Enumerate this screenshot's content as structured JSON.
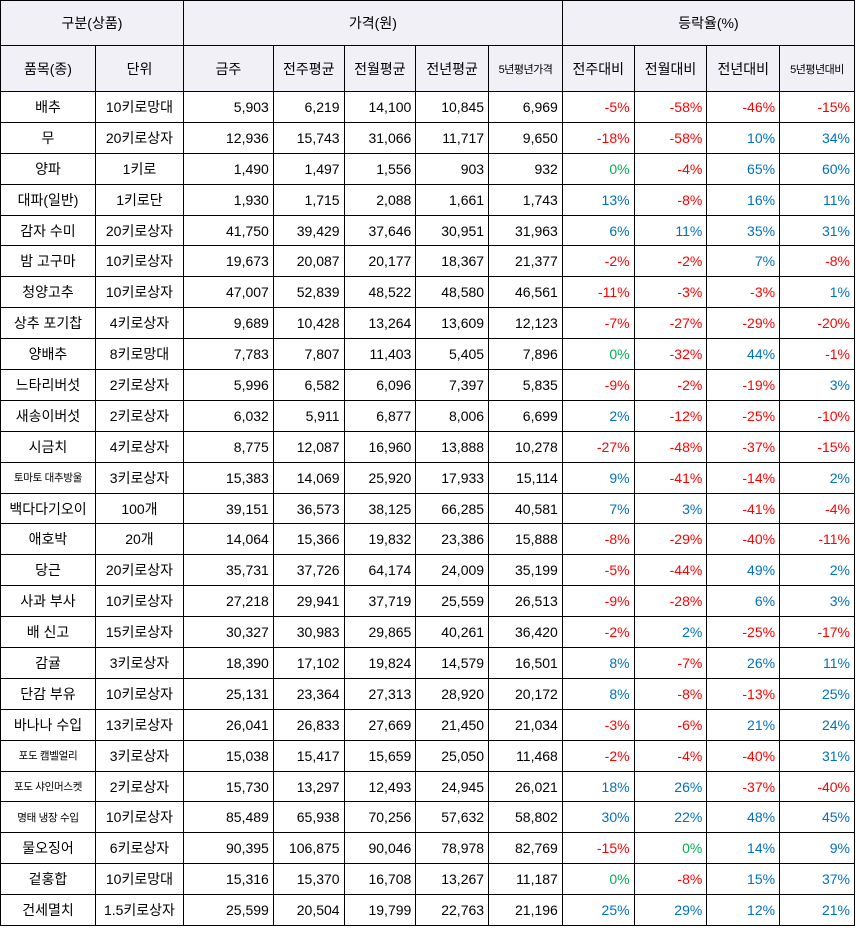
{
  "header": {
    "group_category": "구분(상품)",
    "group_price": "가격(원)",
    "group_change": "등락율(%)",
    "col_item": "품목(종)",
    "col_unit": "단위",
    "col_this_week": "금주",
    "col_prev_week_avg": "전주평균",
    "col_prev_month_avg": "전월평균",
    "col_prev_year_avg": "전년평균",
    "col_5yr_avg_price": "5년평년가격",
    "col_vs_prev_week": "전주대비",
    "col_vs_prev_month": "전월대비",
    "col_vs_prev_year": "전년대비",
    "col_vs_5yr_avg": "5년평년대비"
  },
  "rows": [
    {
      "item": "배추",
      "unit": "10키로망대",
      "p1": "5,903",
      "p2": "6,219",
      "p3": "14,100",
      "p4": "10,845",
      "p5": "6,969",
      "r1": "-5%",
      "r2": "-58%",
      "r3": "-46%",
      "r4": "-15%"
    },
    {
      "item": "무",
      "unit": "20키로상자",
      "p1": "12,936",
      "p2": "15,743",
      "p3": "31,066",
      "p4": "11,717",
      "p5": "9,650",
      "r1": "-18%",
      "r2": "-58%",
      "r3": "10%",
      "r4": "34%"
    },
    {
      "item": "양파",
      "unit": "1키로",
      "p1": "1,490",
      "p2": "1,497",
      "p3": "1,556",
      "p4": "903",
      "p5": "932",
      "r1": "0%",
      "r2": "-4%",
      "r3": "65%",
      "r4": "60%"
    },
    {
      "item": "대파(일반)",
      "unit": "1키로단",
      "p1": "1,930",
      "p2": "1,715",
      "p3": "2,088",
      "p4": "1,661",
      "p5": "1,743",
      "r1": "13%",
      "r2": "-8%",
      "r3": "16%",
      "r4": "11%"
    },
    {
      "item": "감자 수미",
      "unit": "20키로상자",
      "p1": "41,750",
      "p2": "39,429",
      "p3": "37,646",
      "p4": "30,951",
      "p5": "31,963",
      "r1": "6%",
      "r2": "11%",
      "r3": "35%",
      "r4": "31%"
    },
    {
      "item": "밤 고구마",
      "unit": "10키로상자",
      "p1": "19,673",
      "p2": "20,087",
      "p3": "20,177",
      "p4": "18,367",
      "p5": "21,377",
      "r1": "-2%",
      "r2": "-2%",
      "r3": "7%",
      "r4": "-8%"
    },
    {
      "item": "청양고추",
      "unit": "10키로상자",
      "p1": "47,007",
      "p2": "52,839",
      "p3": "48,522",
      "p4": "48,580",
      "p5": "46,561",
      "r1": "-11%",
      "r2": "-3%",
      "r3": "-3%",
      "r4": "1%"
    },
    {
      "item": "상추 포기찹",
      "unit": "4키로상자",
      "p1": "9,689",
      "p2": "10,428",
      "p3": "13,264",
      "p4": "13,609",
      "p5": "12,123",
      "r1": "-7%",
      "r2": "-27%",
      "r3": "-29%",
      "r4": "-20%"
    },
    {
      "item": "양배추",
      "unit": "8키로망대",
      "p1": "7,783",
      "p2": "7,807",
      "p3": "11,403",
      "p4": "5,405",
      "p5": "7,896",
      "r1": "0%",
      "r2": "-32%",
      "r3": "44%",
      "r4": "-1%"
    },
    {
      "item": "느타리버섯",
      "unit": "2키로상자",
      "p1": "5,996",
      "p2": "6,582",
      "p3": "6,096",
      "p4": "7,397",
      "p5": "5,835",
      "r1": "-9%",
      "r2": "-2%",
      "r3": "-19%",
      "r4": "3%"
    },
    {
      "item": "새송이버섯",
      "unit": "2키로상자",
      "p1": "6,032",
      "p2": "5,911",
      "p3": "6,877",
      "p4": "8,006",
      "p5": "6,699",
      "r1": "2%",
      "r2": "-12%",
      "r3": "-25%",
      "r4": "-10%"
    },
    {
      "item": "시금치",
      "unit": "4키로상자",
      "p1": "8,775",
      "p2": "12,087",
      "p3": "16,960",
      "p4": "13,888",
      "p5": "10,278",
      "r1": "-27%",
      "r2": "-48%",
      "r3": "-37%",
      "r4": "-15%"
    },
    {
      "item": "토마토 대추방울",
      "unit": "3키로상자",
      "p1": "15,383",
      "p2": "14,069",
      "p3": "25,920",
      "p4": "17,933",
      "p5": "15,114",
      "r1": "9%",
      "r2": "-41%",
      "r3": "-14%",
      "r4": "2%"
    },
    {
      "item": "백다다기오이",
      "unit": "100개",
      "p1": "39,151",
      "p2": "36,573",
      "p3": "38,125",
      "p4": "66,285",
      "p5": "40,581",
      "r1": "7%",
      "r2": "3%",
      "r3": "-41%",
      "r4": "-4%"
    },
    {
      "item": "애호박",
      "unit": "20개",
      "p1": "14,064",
      "p2": "15,366",
      "p3": "19,832",
      "p4": "23,386",
      "p5": "15,888",
      "r1": "-8%",
      "r2": "-29%",
      "r3": "-40%",
      "r4": "-11%"
    },
    {
      "item": "당근",
      "unit": "20키로상자",
      "p1": "35,731",
      "p2": "37,726",
      "p3": "64,174",
      "p4": "24,009",
      "p5": "35,199",
      "r1": "-5%",
      "r2": "-44%",
      "r3": "49%",
      "r4": "2%"
    },
    {
      "item": "사과 부사",
      "unit": "10키로상자",
      "p1": "27,218",
      "p2": "29,941",
      "p3": "37,719",
      "p4": "25,559",
      "p5": "26,513",
      "r1": "-9%",
      "r2": "-28%",
      "r3": "6%",
      "r4": "3%"
    },
    {
      "item": "배 신고",
      "unit": "15키로상자",
      "p1": "30,327",
      "p2": "30,983",
      "p3": "29,865",
      "p4": "40,261",
      "p5": "36,420",
      "r1": "-2%",
      "r2": "2%",
      "r3": "-25%",
      "r4": "-17%"
    },
    {
      "item": "감귤",
      "unit": "3키로상자",
      "p1": "18,390",
      "p2": "17,102",
      "p3": "19,824",
      "p4": "14,579",
      "p5": "16,501",
      "r1": "8%",
      "r2": "-7%",
      "r3": "26%",
      "r4": "11%"
    },
    {
      "item": "단감 부유",
      "unit": "10키로상자",
      "p1": "25,131",
      "p2": "23,364",
      "p3": "27,313",
      "p4": "28,920",
      "p5": "20,172",
      "r1": "8%",
      "r2": "-8%",
      "r3": "-13%",
      "r4": "25%"
    },
    {
      "item": "바나나 수입",
      "unit": "13키로상자",
      "p1": "26,041",
      "p2": "26,833",
      "p3": "27,669",
      "p4": "21,450",
      "p5": "21,034",
      "r1": "-3%",
      "r2": "-6%",
      "r3": "21%",
      "r4": "24%"
    },
    {
      "item": "포도 캠벨얼리",
      "unit": "3키로상자",
      "p1": "15,038",
      "p2": "15,417",
      "p3": "15,659",
      "p4": "25,050",
      "p5": "11,468",
      "r1": "-2%",
      "r2": "-4%",
      "r3": "-40%",
      "r4": "31%"
    },
    {
      "item": "포도 샤인머스켓",
      "unit": "2키로상자",
      "p1": "15,730",
      "p2": "13,297",
      "p3": "12,493",
      "p4": "24,945",
      "p5": "26,021",
      "r1": "18%",
      "r2": "26%",
      "r3": "-37%",
      "r4": "-40%"
    },
    {
      "item": "명태 냉장 수입",
      "unit": "10키로상자",
      "p1": "85,489",
      "p2": "65,938",
      "p3": "70,256",
      "p4": "57,632",
      "p5": "58,802",
      "r1": "30%",
      "r2": "22%",
      "r3": "48%",
      "r4": "45%"
    },
    {
      "item": "물오징어",
      "unit": "6키로상자",
      "p1": "90,395",
      "p2": "106,875",
      "p3": "90,046",
      "p4": "78,978",
      "p5": "82,769",
      "r1": "-15%",
      "r2": "0%",
      "r3": "14%",
      "r4": "9%"
    },
    {
      "item": "겉홍합",
      "unit": "10키로망대",
      "p1": "15,316",
      "p2": "15,370",
      "p3": "16,708",
      "p4": "13,267",
      "p5": "11,187",
      "r1": "0%",
      "r2": "-8%",
      "r3": "15%",
      "r4": "37%"
    },
    {
      "item": "건세멸치",
      "unit": "1.5키로상자",
      "p1": "25,599",
      "p2": "20,504",
      "p3": "19,799",
      "p4": "22,763",
      "p5": "21,196",
      "r1": "25%",
      "r2": "29%",
      "r3": "12%",
      "r4": "21%"
    }
  ],
  "colors": {
    "negative": "#ff0000",
    "positive": "#0070c0",
    "zero": "#00b050",
    "header_bg": "#f2f0f7"
  }
}
